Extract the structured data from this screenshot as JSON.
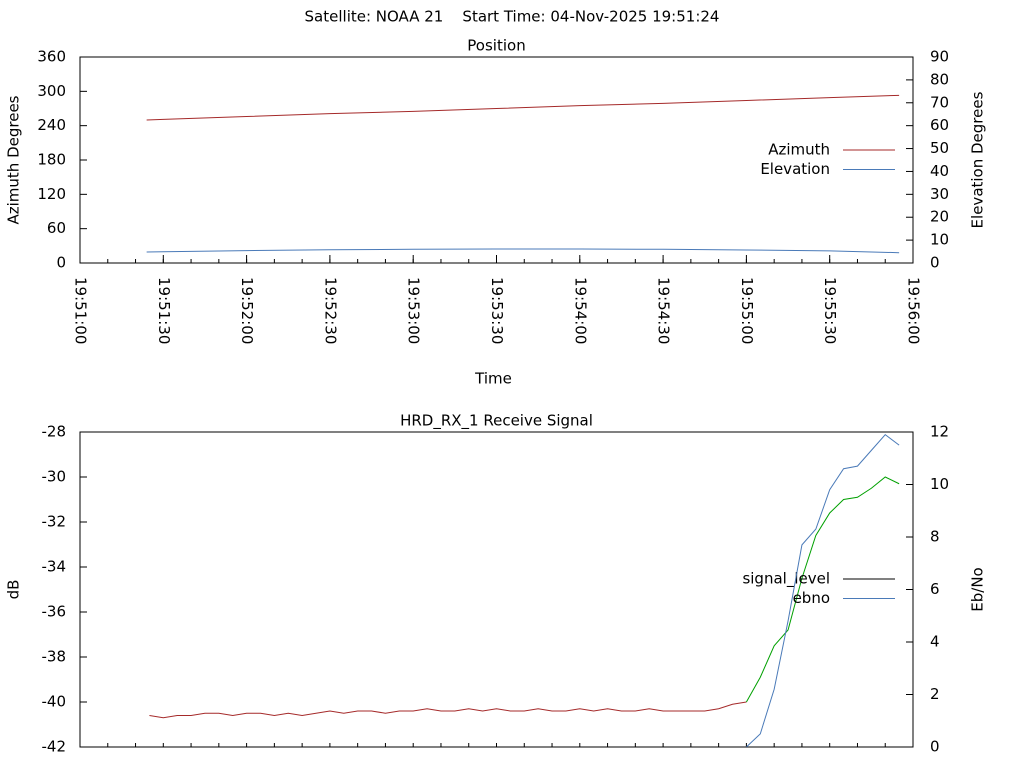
{
  "title": "Satellite: NOAA 21    Start Time: 04-Nov-2025 19:51:24",
  "chart_data": [
    {
      "type": "line",
      "title": "Position",
      "x_label": "Time",
      "y_label": "Azimuth Degrees",
      "y2_label": "Elevation Degrees",
      "x": [
        "19:51:24",
        "19:51:30",
        "19:52:00",
        "19:52:30",
        "19:53:00",
        "19:53:30",
        "19:54:00",
        "19:54:30",
        "19:55:00",
        "19:55:30",
        "19:55:55"
      ],
      "series": [
        {
          "name": "Azimuth",
          "color": "#a52a2a",
          "axis": "y",
          "values": [
            250,
            251,
            256,
            261,
            265,
            270,
            275,
            279,
            284,
            289,
            293
          ]
        },
        {
          "name": "Elevation",
          "color": "#4a7ab8",
          "axis": "y2",
          "values": [
            4.8,
            4.9,
            5.4,
            5.8,
            6.0,
            6.1,
            6.1,
            6.0,
            5.7,
            5.3,
            4.5
          ]
        }
      ],
      "xlim": [
        "19:51:00",
        "19:56:00"
      ],
      "xticks": [
        "19:51:00",
        "19:51:30",
        "19:52:00",
        "19:52:30",
        "19:53:00",
        "19:53:30",
        "19:54:00",
        "19:54:30",
        "19:55:00",
        "19:55:30",
        "19:56:00"
      ],
      "ylim": [
        0,
        360
      ],
      "yticks": [
        0,
        60,
        120,
        180,
        240,
        300,
        360
      ],
      "y2lim": [
        0,
        90
      ],
      "y2ticks": [
        0,
        10,
        20,
        30,
        40,
        50,
        60,
        70,
        80,
        90
      ],
      "legend": "right"
    },
    {
      "type": "line",
      "title": "HRD_RX_1 Receive Signal",
      "y_label": "dB",
      "y2_label": "Eb/No",
      "x": [
        "19:51:25",
        "19:51:30",
        "19:51:35",
        "19:51:40",
        "19:51:45",
        "19:51:50",
        "19:51:55",
        "19:52:00",
        "19:52:05",
        "19:52:10",
        "19:52:15",
        "19:52:20",
        "19:52:25",
        "19:52:30",
        "19:52:35",
        "19:52:40",
        "19:52:45",
        "19:52:50",
        "19:52:55",
        "19:53:00",
        "19:53:05",
        "19:53:10",
        "19:53:15",
        "19:53:20",
        "19:53:25",
        "19:53:30",
        "19:53:35",
        "19:53:40",
        "19:53:45",
        "19:53:50",
        "19:53:55",
        "19:54:00",
        "19:54:05",
        "19:54:10",
        "19:54:15",
        "19:54:20",
        "19:54:25",
        "19:54:30",
        "19:54:35",
        "19:54:40",
        "19:54:45",
        "19:54:50",
        "19:54:55",
        "19:55:00",
        "19:55:05",
        "19:55:10",
        "19:55:15",
        "19:55:20",
        "19:55:25",
        "19:55:30",
        "19:55:35",
        "19:55:40",
        "19:55:45",
        "19:55:50",
        "19:55:55"
      ],
      "series": [
        {
          "name": "signal_level",
          "color": "#000000",
          "axis": "y",
          "line_colors": [
            "#a52a2a",
            "#00a000"
          ],
          "color_split_x": "19:55:00",
          "values": [
            -40.6,
            -40.7,
            -40.6,
            -40.6,
            -40.5,
            -40.5,
            -40.6,
            -40.5,
            -40.5,
            -40.6,
            -40.5,
            -40.6,
            -40.5,
            -40.4,
            -40.5,
            -40.4,
            -40.4,
            -40.5,
            -40.4,
            -40.4,
            -40.3,
            -40.4,
            -40.4,
            -40.3,
            -40.4,
            -40.3,
            -40.4,
            -40.4,
            -40.3,
            -40.4,
            -40.4,
            -40.3,
            -40.4,
            -40.3,
            -40.4,
            -40.4,
            -40.3,
            -40.4,
            -40.4,
            -40.4,
            -40.4,
            -40.3,
            -40.1,
            -40.0,
            -38.9,
            -37.5,
            -36.8,
            -34.5,
            -32.6,
            -31.6,
            -31.0,
            -30.9,
            -30.5,
            -30.0,
            -30.3
          ]
        },
        {
          "name": "ebno",
          "color": "#4a7ab8",
          "axis": "y2",
          "values": [
            null,
            null,
            null,
            null,
            null,
            null,
            null,
            null,
            null,
            null,
            null,
            null,
            null,
            null,
            null,
            null,
            null,
            null,
            null,
            null,
            null,
            null,
            null,
            null,
            null,
            null,
            null,
            null,
            null,
            null,
            null,
            null,
            null,
            null,
            null,
            null,
            null,
            null,
            null,
            null,
            null,
            null,
            null,
            0.0,
            0.5,
            2.2,
            4.8,
            7.7,
            8.3,
            9.8,
            10.6,
            10.7,
            11.3,
            11.9,
            11.5
          ]
        }
      ],
      "xlim": [
        "19:51:00",
        "19:56:00"
      ],
      "ylim": [
        -42,
        -28
      ],
      "yticks": [
        -42,
        -40,
        -38,
        -36,
        -34,
        -32,
        -30,
        -28
      ],
      "y2lim": [
        0,
        12
      ],
      "y2ticks": [
        0,
        2,
        4,
        6,
        8,
        10,
        12
      ],
      "legend": "right"
    }
  ]
}
